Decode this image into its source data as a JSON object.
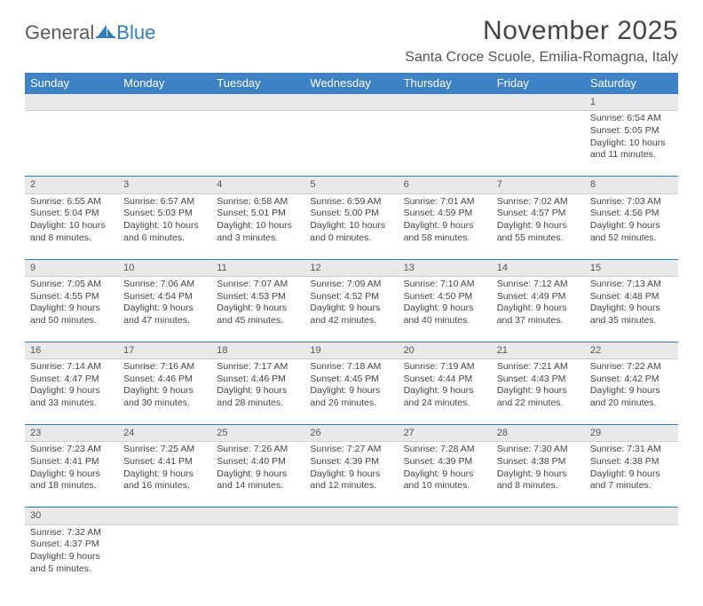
{
  "logo": {
    "text1": "General",
    "text2": "Blue"
  },
  "title": "November 2025",
  "location": "Santa Croce Scuole, Emilia-Romagna, Italy",
  "colors": {
    "header_bg": "#3d82c4",
    "header_text": "#ffffff",
    "daynum_bg": "#e9e9e9",
    "rule": "#2f7fc0",
    "text": "#444444"
  },
  "fonts": {
    "title_pt": 30,
    "location_pt": 16,
    "dayheader_pt": 13,
    "body_pt": 10.5
  },
  "day_headers": [
    "Sunday",
    "Monday",
    "Tuesday",
    "Wednesday",
    "Thursday",
    "Friday",
    "Saturday"
  ],
  "weeks": [
    [
      null,
      null,
      null,
      null,
      null,
      null,
      {
        "n": "1",
        "sr": "Sunrise: 6:54 AM",
        "ss": "Sunset: 5:05 PM",
        "dl": "Daylight: 10 hours and 11 minutes."
      }
    ],
    [
      {
        "n": "2",
        "sr": "Sunrise: 6:55 AM",
        "ss": "Sunset: 5:04 PM",
        "dl": "Daylight: 10 hours and 8 minutes."
      },
      {
        "n": "3",
        "sr": "Sunrise: 6:57 AM",
        "ss": "Sunset: 5:03 PM",
        "dl": "Daylight: 10 hours and 6 minutes."
      },
      {
        "n": "4",
        "sr": "Sunrise: 6:58 AM",
        "ss": "Sunset: 5:01 PM",
        "dl": "Daylight: 10 hours and 3 minutes."
      },
      {
        "n": "5",
        "sr": "Sunrise: 6:59 AM",
        "ss": "Sunset: 5:00 PM",
        "dl": "Daylight: 10 hours and 0 minutes."
      },
      {
        "n": "6",
        "sr": "Sunrise: 7:01 AM",
        "ss": "Sunset: 4:59 PM",
        "dl": "Daylight: 9 hours and 58 minutes."
      },
      {
        "n": "7",
        "sr": "Sunrise: 7:02 AM",
        "ss": "Sunset: 4:57 PM",
        "dl": "Daylight: 9 hours and 55 minutes."
      },
      {
        "n": "8",
        "sr": "Sunrise: 7:03 AM",
        "ss": "Sunset: 4:56 PM",
        "dl": "Daylight: 9 hours and 52 minutes."
      }
    ],
    [
      {
        "n": "9",
        "sr": "Sunrise: 7:05 AM",
        "ss": "Sunset: 4:55 PM",
        "dl": "Daylight: 9 hours and 50 minutes."
      },
      {
        "n": "10",
        "sr": "Sunrise: 7:06 AM",
        "ss": "Sunset: 4:54 PM",
        "dl": "Daylight: 9 hours and 47 minutes."
      },
      {
        "n": "11",
        "sr": "Sunrise: 7:07 AM",
        "ss": "Sunset: 4:53 PM",
        "dl": "Daylight: 9 hours and 45 minutes."
      },
      {
        "n": "12",
        "sr": "Sunrise: 7:09 AM",
        "ss": "Sunset: 4:52 PM",
        "dl": "Daylight: 9 hours and 42 minutes."
      },
      {
        "n": "13",
        "sr": "Sunrise: 7:10 AM",
        "ss": "Sunset: 4:50 PM",
        "dl": "Daylight: 9 hours and 40 minutes."
      },
      {
        "n": "14",
        "sr": "Sunrise: 7:12 AM",
        "ss": "Sunset: 4:49 PM",
        "dl": "Daylight: 9 hours and 37 minutes."
      },
      {
        "n": "15",
        "sr": "Sunrise: 7:13 AM",
        "ss": "Sunset: 4:48 PM",
        "dl": "Daylight: 9 hours and 35 minutes."
      }
    ],
    [
      {
        "n": "16",
        "sr": "Sunrise: 7:14 AM",
        "ss": "Sunset: 4:47 PM",
        "dl": "Daylight: 9 hours and 33 minutes."
      },
      {
        "n": "17",
        "sr": "Sunrise: 7:16 AM",
        "ss": "Sunset: 4:46 PM",
        "dl": "Daylight: 9 hours and 30 minutes."
      },
      {
        "n": "18",
        "sr": "Sunrise: 7:17 AM",
        "ss": "Sunset: 4:46 PM",
        "dl": "Daylight: 9 hours and 28 minutes."
      },
      {
        "n": "19",
        "sr": "Sunrise: 7:18 AM",
        "ss": "Sunset: 4:45 PM",
        "dl": "Daylight: 9 hours and 26 minutes."
      },
      {
        "n": "20",
        "sr": "Sunrise: 7:19 AM",
        "ss": "Sunset: 4:44 PM",
        "dl": "Daylight: 9 hours and 24 minutes."
      },
      {
        "n": "21",
        "sr": "Sunrise: 7:21 AM",
        "ss": "Sunset: 4:43 PM",
        "dl": "Daylight: 9 hours and 22 minutes."
      },
      {
        "n": "22",
        "sr": "Sunrise: 7:22 AM",
        "ss": "Sunset: 4:42 PM",
        "dl": "Daylight: 9 hours and 20 minutes."
      }
    ],
    [
      {
        "n": "23",
        "sr": "Sunrise: 7:23 AM",
        "ss": "Sunset: 4:41 PM",
        "dl": "Daylight: 9 hours and 18 minutes."
      },
      {
        "n": "24",
        "sr": "Sunrise: 7:25 AM",
        "ss": "Sunset: 4:41 PM",
        "dl": "Daylight: 9 hours and 16 minutes."
      },
      {
        "n": "25",
        "sr": "Sunrise: 7:26 AM",
        "ss": "Sunset: 4:40 PM",
        "dl": "Daylight: 9 hours and 14 minutes."
      },
      {
        "n": "26",
        "sr": "Sunrise: 7:27 AM",
        "ss": "Sunset: 4:39 PM",
        "dl": "Daylight: 9 hours and 12 minutes."
      },
      {
        "n": "27",
        "sr": "Sunrise: 7:28 AM",
        "ss": "Sunset: 4:39 PM",
        "dl": "Daylight: 9 hours and 10 minutes."
      },
      {
        "n": "28",
        "sr": "Sunrise: 7:30 AM",
        "ss": "Sunset: 4:38 PM",
        "dl": "Daylight: 9 hours and 8 minutes."
      },
      {
        "n": "29",
        "sr": "Sunrise: 7:31 AM",
        "ss": "Sunset: 4:38 PM",
        "dl": "Daylight: 9 hours and 7 minutes."
      }
    ],
    [
      {
        "n": "30",
        "sr": "Sunrise: 7:32 AM",
        "ss": "Sunset: 4:37 PM",
        "dl": "Daylight: 9 hours and 5 minutes."
      },
      null,
      null,
      null,
      null,
      null,
      null
    ]
  ]
}
